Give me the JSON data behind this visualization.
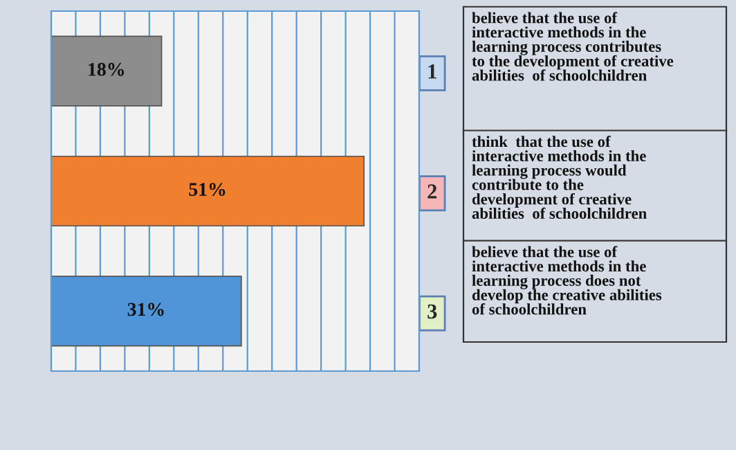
{
  "chart_data": {
    "type": "bar",
    "orientation": "horizontal",
    "categories": [
      "1",
      "2",
      "3"
    ],
    "values": [
      18,
      51,
      31
    ],
    "colors": [
      "#8c8c8c",
      "#f07f30",
      "#4f95d8"
    ],
    "value_labels": [
      "18%",
      "51%",
      "31%"
    ],
    "xlim": [
      0,
      60
    ],
    "xticks": [
      {
        "value": 0,
        "label": null
      },
      {
        "value": 4,
        "label": null
      },
      {
        "value": 8,
        "label": null
      },
      {
        "value": 12,
        "label": null
      },
      {
        "value": 16,
        "label": null
      },
      {
        "value": 20,
        "label": null
      },
      {
        "value": 24,
        "label": null
      },
      {
        "value": 28,
        "label": null
      },
      {
        "value": 32,
        "label": null
      },
      {
        "value": 36,
        "label": null
      },
      {
        "value": 40,
        "label": null
      },
      {
        "value": 44,
        "label": null
      },
      {
        "value": 48,
        "label": null
      },
      {
        "value": 52,
        "label": null
      },
      {
        "value": 56,
        "label": null
      },
      {
        "value": 60,
        "label": null
      }
    ],
    "grid": "x",
    "annotations": [
      "believe that the use of\ninteractive methods in the\nlearning process contributes\nto the development of creative\nabilities  of schoolchildren",
      "think  that the use of\ninteractive methods in the\nlearning process would\ncontribute to the\ndevelopment of creative\nabilities  of schoolchildren",
      "believe that the use of\ninteractive methods in the\nlearning process does not\ndevelop the creative abilities\nof schoolchildren"
    ]
  }
}
